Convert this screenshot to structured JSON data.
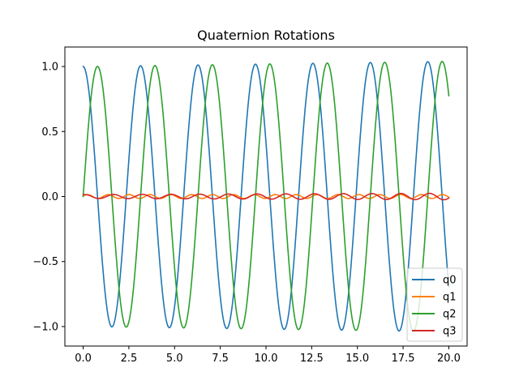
{
  "chart_data": {
    "type": "line",
    "title": "Quaternion Rotations",
    "xlabel": "",
    "ylabel": "",
    "xlim": [
      -1.0,
      21.0
    ],
    "ylim": [
      -1.15,
      1.15
    ],
    "xticks": [
      0.0,
      2.5,
      5.0,
      7.5,
      10.0,
      12.5,
      15.0,
      17.5,
      20.0
    ],
    "xtick_labels": [
      "0.0",
      "2.5",
      "5.0",
      "7.5",
      "10.0",
      "12.5",
      "15.0",
      "17.5",
      "20.0"
    ],
    "yticks": [
      -1.0,
      -0.5,
      0.0,
      0.5,
      1.0
    ],
    "ytick_labels": [
      "−1.0",
      "−0.5",
      "0.0",
      "0.5",
      "1.0"
    ],
    "grid": false,
    "legend_position": "lower-right",
    "x_start": 0,
    "x_end": 20,
    "sample_count": 401,
    "series": [
      {
        "name": "q0",
        "color": "#1f77b4",
        "form": "cos",
        "amplitude_start": 1.0,
        "amplitude_growth": 0.002,
        "angular_frequency": 2.0,
        "phase": 0.0
      },
      {
        "name": "q1",
        "color": "#ff7f0e",
        "form": "sin",
        "amplitude_start": 0.015,
        "amplitude_growth": 0.0,
        "angular_frequency": 5.5,
        "phase": 0.3
      },
      {
        "name": "q2",
        "color": "#2ca02c",
        "form": "sin",
        "amplitude_start": 1.0,
        "amplitude_growth": 0.002,
        "angular_frequency": 2.0,
        "phase": 0.0
      },
      {
        "name": "q3",
        "color": "#d62728",
        "form": "sin",
        "amplitude_start": 0.015,
        "amplitude_growth": 0.0005,
        "angular_frequency": 4.0,
        "phase": 1.2
      }
    ]
  }
}
